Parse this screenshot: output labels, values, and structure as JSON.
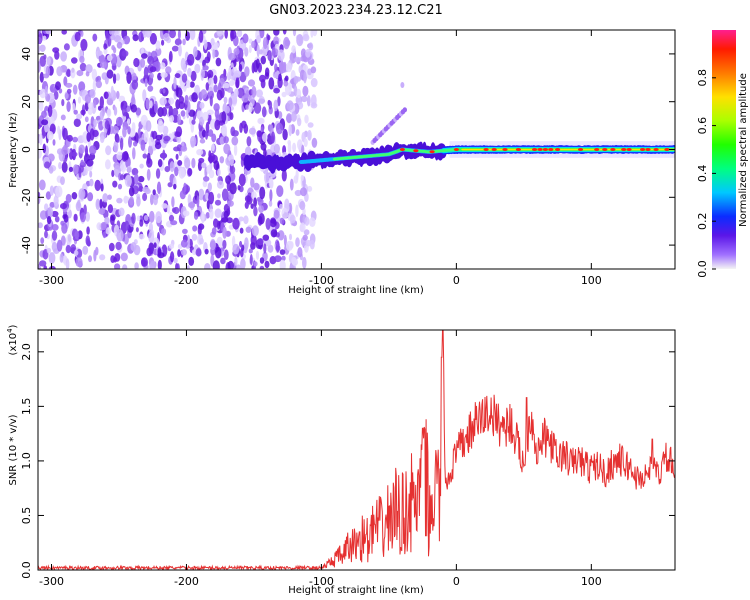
{
  "title": "GN03.2023.234.23.12.C21",
  "chart_data": [
    {
      "type": "heatmap",
      "xlabel": "Height of straight line (km)",
      "ylabel": "Frequency (Hz)",
      "xlim": [
        -310,
        162
      ],
      "ylim": [
        -50,
        50
      ],
      "x_ticks": [
        -300,
        -200,
        -100,
        0,
        100
      ],
      "y_ticks": [
        -40,
        -20,
        0,
        20,
        40
      ],
      "noise_region_x": [
        -310,
        -105
      ],
      "signal_track": [
        {
          "x": -155,
          "y": -5
        },
        {
          "x": -130,
          "y": -6
        },
        {
          "x": -110,
          "y": -5
        },
        {
          "x": -90,
          "y": -4
        },
        {
          "x": -70,
          "y": -3
        },
        {
          "x": -50,
          "y": -2
        },
        {
          "x": -40,
          "y": 0
        },
        {
          "x": -20,
          "y": -1
        },
        {
          "x": 0,
          "y": 0
        },
        {
          "x": 50,
          "y": 0
        },
        {
          "x": 100,
          "y": 0
        },
        {
          "x": 162,
          "y": 0
        }
      ],
      "colorbar": {
        "label": "Normalized spectral amplitude",
        "range": [
          0.0,
          1.0
        ],
        "ticks": [
          "0.0",
          "0.2",
          "0.4",
          "0.6",
          "0.8"
        ],
        "tick_values": [
          0.0,
          0.2,
          0.4,
          0.6,
          0.8
        ]
      }
    },
    {
      "type": "line",
      "xlabel": "Height of straight line (km)",
      "ylabel": "SNR (10 * v/v)",
      "multiplier": "(x10",
      "multiplier_exp": "4",
      "multiplier_close": ")",
      "xlim": [
        -310,
        162
      ],
      "ylim": [
        0.0,
        2.2
      ],
      "x_ticks": [
        -300,
        -200,
        -100,
        0,
        100
      ],
      "y_ticks": [
        "0.0",
        "0.5",
        "1.0",
        "1.5",
        "2.0"
      ],
      "y_tick_values": [
        0.0,
        0.5,
        1.0,
        1.5,
        2.0
      ],
      "color": "#e53030",
      "series": [
        {
          "x": [
            -310,
            -280,
            -250,
            -220,
            -200,
            -180,
            -150,
            -120,
            -100,
            -95,
            -90,
            -85,
            -80,
            -75,
            -70,
            -65,
            -60,
            -55,
            -50,
            -45,
            -40,
            -35,
            -30,
            -25,
            -22,
            -20,
            -18,
            -15,
            -12,
            -10,
            -8,
            -5,
            0,
            5,
            10,
            15,
            20,
            25,
            30,
            35,
            40,
            45,
            50,
            55,
            60,
            65,
            70,
            75,
            80,
            85,
            90,
            95,
            100,
            105,
            110,
            115,
            120,
            125,
            130,
            135,
            140,
            145,
            150,
            155,
            160,
            162
          ],
          "y": [
            0.02,
            0.02,
            0.02,
            0.02,
            0.02,
            0.02,
            0.02,
            0.02,
            0.03,
            0.08,
            0.15,
            0.2,
            0.3,
            0.35,
            0.45,
            0.4,
            0.6,
            0.55,
            0.7,
            0.8,
            0.75,
            0.9,
            0.9,
            1.0,
            1.3,
            0.6,
            1.0,
            1.1,
            0.95,
            2.1,
            0.8,
            0.9,
            1.1,
            1.2,
            1.3,
            1.4,
            1.45,
            1.5,
            1.4,
            1.35,
            1.4,
            1.2,
            1.0,
            1.5,
            1.1,
            1.25,
            1.2,
            1.05,
            1.1,
            1.0,
            1.05,
            1.0,
            0.95,
            1.0,
            0.9,
            1.0,
            1.05,
            1.0,
            0.95,
            0.85,
            0.9,
            0.95,
            0.9,
            1.05,
            1.0,
            0.95
          ],
          "peaks": [
            {
              "x": -25,
              "y": 1.3
            },
            {
              "x": -11,
              "y": 1.95
            },
            {
              "x": -10,
              "y": 2.2
            },
            {
              "x": 52,
              "y": 1.58
            },
            {
              "x": 145,
              "y": 1.2
            }
          ]
        }
      ]
    }
  ]
}
